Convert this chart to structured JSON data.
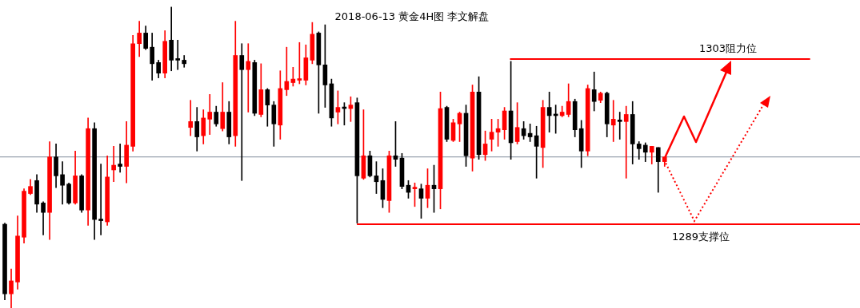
{
  "chart_data": {
    "type": "candlestick",
    "title": "2018-06-13 黄金4H图 李文解盘",
    "categories": [
      null,
      null,
      null,
      null,
      null,
      null,
      null,
      null,
      null,
      null,
      null,
      null,
      null,
      null,
      null,
      null,
      null,
      null,
      null,
      null,
      null,
      null,
      null,
      null,
      null,
      null,
      null,
      null,
      null,
      null,
      null,
      null,
      null,
      null,
      null,
      null,
      null,
      null,
      null,
      null,
      null,
      null,
      null,
      null,
      null,
      null,
      null,
      null,
      null,
      null,
      null,
      null,
      null,
      null,
      null,
      null,
      null,
      null,
      null,
      null,
      null,
      null,
      null,
      null,
      null,
      null,
      null,
      null,
      null,
      null,
      null,
      null,
      null,
      null,
      null,
      null,
      null,
      null,
      null,
      null,
      null,
      null,
      null,
      null,
      null,
      null,
      null,
      null,
      null,
      null,
      null,
      null,
      null,
      null,
      null,
      null,
      null,
      null,
      null,
      null,
      null,
      null,
      null,
      null,
      null,
      null,
      null,
      null,
      null,
      null,
      null,
      null,
      null,
      null,
      null,
      null,
      null,
      null,
      null,
      null,
      null,
      null,
      null,
      null,
      null,
      null,
      null,
      null,
      null,
      null,
      null,
      null,
      null,
      null
    ],
    "ohlc": [
      [
        1289.0,
        1289.1,
        1282.6,
        1283.1
      ],
      [
        1283.1,
        1285.2,
        1281.9,
        1284.2
      ],
      [
        1284.1,
        1289.7,
        1283.5,
        1288.0
      ],
      [
        1287.9,
        1292.0,
        1287.4,
        1291.8
      ],
      [
        1291.6,
        1292.8,
        1291.5,
        1292.2
      ],
      [
        1292.7,
        1293.2,
        1290.0,
        1290.7
      ],
      [
        1290.8,
        1290.9,
        1288.1,
        1290.0
      ],
      [
        1290.0,
        1296.0,
        1287.7,
        1294.7
      ],
      [
        1294.7,
        1295.8,
        1292.1,
        1293.1
      ],
      [
        1293.2,
        1294.3,
        1290.7,
        1292.3
      ],
      [
        1292.4,
        1292.5,
        1290.7,
        1290.8
      ],
      [
        1290.8,
        1295.2,
        1290.7,
        1293.1
      ],
      [
        1293.1,
        1293.2,
        1290.0,
        1290.2
      ],
      [
        1290.2,
        1298.0,
        1288.9,
        1297.1
      ],
      [
        1297.1,
        1297.6,
        1287.7,
        1289.4
      ],
      [
        1289.4,
        1294.1,
        1288.1,
        1289.3
      ],
      [
        1289.2,
        1294.8,
        1288.9,
        1293.0
      ],
      [
        1293.6,
        1295.6,
        1292.6,
        1294.0
      ],
      [
        1294.1,
        1295.8,
        1293.4,
        1293.9
      ],
      [
        1293.9,
        1297.7,
        1292.5,
        1295.7
      ],
      [
        1295.6,
        1305.0,
        1295.2,
        1304.3
      ],
      [
        1304.3,
        1306.2,
        1303.2,
        1305.2
      ],
      [
        1305.2,
        1305.8,
        1303.8,
        1303.9
      ],
      [
        1304.0,
        1305.2,
        1301.2,
        1302.6
      ],
      [
        1302.7,
        1302.9,
        1301.4,
        1301.8
      ],
      [
        1301.8,
        1305.4,
        1301.4,
        1304.5
      ],
      [
        1304.6,
        1307.4,
        1302.0,
        1302.9
      ],
      [
        1303.0,
        1304.6,
        1302.1,
        1302.9
      ],
      [
        1302.9,
        1303.3,
        1302.3,
        1302.6
      ],
      [
        1297.2,
        1299.5,
        1296.5,
        1297.7
      ],
      [
        1297.7,
        1298.9,
        1295.2,
        1296.4
      ],
      [
        1296.5,
        1298.7,
        1295.8,
        1298.0
      ],
      [
        1297.9,
        1300.0,
        1296.6,
        1298.5
      ],
      [
        1298.5,
        1299.0,
        1297.3,
        1297.5
      ],
      [
        1297.1,
        1301.0,
        1296.9,
        1298.5
      ],
      [
        1298.5,
        1299.4,
        1295.8,
        1296.4
      ],
      [
        1296.5,
        1306.2,
        1295.6,
        1303.3
      ],
      [
        1303.3,
        1304.3,
        1292.7,
        1302.1
      ],
      [
        1302.1,
        1304.3,
        1298.5,
        1302.8
      ],
      [
        1302.7,
        1302.9,
        1298.2,
        1298.4
      ],
      [
        1298.3,
        1302.6,
        1298.1,
        1300.4
      ],
      [
        1300.4,
        1300.5,
        1297.3,
        1299.1
      ],
      [
        1299.1,
        1299.4,
        1295.6,
        1297.5
      ],
      [
        1297.4,
        1302.0,
        1296.2,
        1300.5
      ],
      [
        1300.4,
        1304.0,
        1299.9,
        1301.1
      ],
      [
        1301.0,
        1302.3,
        1300.7,
        1301.3
      ],
      [
        1301.2,
        1304.4,
        1300.9,
        1301.3
      ],
      [
        1301.2,
        1304.2,
        1300.8,
        1303.1
      ],
      [
        1302.9,
        1306.1,
        1302.6,
        1305.1
      ],
      [
        1305.2,
        1305.3,
        1298.4,
        1302.5
      ],
      [
        1302.5,
        1305.9,
        1298.9,
        1300.8
      ],
      [
        1300.9,
        1301.3,
        1297.3,
        1298.0
      ],
      [
        1298.5,
        1300.3,
        1297.5,
        1298.9
      ],
      [
        1298.9,
        1299.3,
        1297.4,
        1298.8
      ],
      [
        1298.8,
        1299.8,
        1297.7,
        1299.1
      ],
      [
        1299.3,
        1299.7,
        1289.1,
        1293.1
      ],
      [
        1292.9,
        1298.7,
        1292.8,
        1294.8
      ],
      [
        1294.8,
        1295.2,
        1293.0,
        1293.1
      ],
      [
        1293.1,
        1294.3,
        1291.6,
        1292.6
      ],
      [
        1292.7,
        1293.7,
        1290.4,
        1291.1
      ],
      [
        1291.0,
        1295.2,
        1290.0,
        1294.8
      ],
      [
        1294.8,
        1297.7,
        1293.9,
        1294.5
      ],
      [
        1294.6,
        1295.0,
        1292.0,
        1292.2
      ],
      [
        1292.3,
        1292.7,
        1291.2,
        1291.7
      ],
      [
        1292.0,
        1292.5,
        1290.5,
        1292.1
      ],
      [
        1292.0,
        1292.4,
        1289.5,
        1291.2
      ],
      [
        1291.2,
        1293.7,
        1290.4,
        1292.3
      ],
      [
        1292.3,
        1294.0,
        1290.0,
        1292.0
      ],
      [
        1292.0,
        1300.2,
        1290.3,
        1298.8
      ],
      [
        1298.9,
        1299.0,
        1296.0,
        1296.2
      ],
      [
        1296.1,
        1297.9,
        1296.0,
        1297.6
      ],
      [
        1297.5,
        1298.5,
        1296.0,
        1298.4
      ],
      [
        1298.4,
        1299.1,
        1293.9,
        1294.8
      ],
      [
        1294.6,
        1300.8,
        1293.5,
        1300.2
      ],
      [
        1300.2,
        1301.5,
        1294.5,
        1294.9
      ],
      [
        1294.9,
        1296.9,
        1294.4,
        1295.8
      ],
      [
        1296.2,
        1297.9,
        1295.2,
        1296.8
      ],
      [
        1296.8,
        1297.9,
        1295.6,
        1297.1
      ],
      [
        1297.0,
        1298.9,
        1296.2,
        1298.6
      ],
      [
        1298.6,
        1302.8,
        1294.5,
        1295.9
      ],
      [
        1296.0,
        1299.3,
        1295.8,
        1297.2
      ],
      [
        1297.1,
        1297.7,
        1296.2,
        1296.5
      ],
      [
        1296.7,
        1297.5,
        1296.0,
        1296.4
      ],
      [
        1296.5,
        1297.3,
        1292.9,
        1295.6
      ],
      [
        1295.5,
        1299.5,
        1293.8,
        1298.9
      ],
      [
        1298.9,
        1300.2,
        1296.8,
        1298.2
      ],
      [
        1298.3,
        1299.1,
        1296.7,
        1298.2
      ],
      [
        1298.2,
        1299.0,
        1298.1,
        1298.5
      ],
      [
        1298.3,
        1300.9,
        1298.1,
        1299.4
      ],
      [
        1299.4,
        1299.6,
        1296.4,
        1297.0
      ],
      [
        1297.1,
        1297.8,
        1293.8,
        1295.2
      ],
      [
        1295.2,
        1300.8,
        1294.8,
        1300.5
      ],
      [
        1300.4,
        1301.9,
        1298.6,
        1299.4
      ],
      [
        1299.5,
        1300.2,
        1299.3,
        1300.1
      ],
      [
        1300.1,
        1300.2,
        1296.4,
        1297.5
      ],
      [
        1297.4,
        1299.5,
        1296.0,
        1297.9
      ],
      [
        1297.8,
        1298.5,
        1296.2,
        1297.7
      ],
      [
        1297.7,
        1299.0,
        1292.9,
        1298.3
      ],
      [
        1298.3,
        1299.4,
        1294.1,
        1295.8
      ],
      [
        1295.8,
        1296.0,
        1294.5,
        1295.4
      ],
      [
        1295.7,
        1295.9,
        1294.3,
        1295.1
      ],
      [
        1295.1,
        1295.6,
        1294.1,
        1295.6
      ],
      [
        1295.5,
        1295.5,
        1291.7,
        1294.3
      ],
      [
        1294.3,
        1294.7,
        1293.9,
        1294.7
      ],
      null,
      null,
      null,
      null,
      null,
      null,
      null,
      null,
      null,
      null,
      null,
      null,
      null,
      null,
      null,
      null,
      null,
      null,
      null,
      null,
      null,
      null,
      null,
      null,
      null,
      null,
      null,
      null,
      null,
      null
    ],
    "colors": [
      "#000000",
      "#ff0000",
      "#ff0000",
      "#ff0000",
      "#ff0000",
      "#000000",
      "#000000",
      "#ff0000",
      "#000000",
      "#000000",
      "#000000",
      "#ff0000",
      "#000000",
      "#ff0000",
      "#000000",
      "#000000",
      "#ff0000",
      "#ff0000",
      "#000000",
      "#ff0000",
      "#ff0000",
      "#ff0000",
      "#000000",
      "#000000",
      "#000000",
      "#ff0000",
      "#000000",
      "#000000",
      "#000000",
      "#ff0000",
      "#000000",
      "#ff0000",
      "#ff0000",
      "#000000",
      "#ff0000",
      "#000000",
      "#ff0000",
      "#000000",
      "#ff0000",
      "#000000",
      "#ff0000",
      "#000000",
      "#000000",
      "#ff0000",
      "#ff0000",
      "#ff0000",
      "#ff0000",
      "#ff0000",
      "#ff0000",
      "#000000",
      "#000000",
      "#000000",
      "#ff0000",
      "#000000",
      "#ff0000",
      "#000000",
      "#ff0000",
      "#000000",
      "#000000",
      "#000000",
      "#ff0000",
      "#000000",
      "#000000",
      "#000000",
      "#ff0000",
      "#000000",
      "#ff0000",
      "#000000",
      "#ff0000",
      "#000000",
      "#ff0000",
      "#ff0000",
      "#000000",
      "#ff0000",
      "#000000",
      "#ff0000",
      "#ff0000",
      "#ff0000",
      "#ff0000",
      "#000000",
      "#ff0000",
      "#000000",
      "#000000",
      "#000000",
      "#ff0000",
      "#000000",
      "#000000",
      "#ff0000",
      "#ff0000",
      "#000000",
      "#000000",
      "#ff0000",
      "#000000",
      "#ff0000",
      "#000000",
      "#ff0000",
      "#000000",
      "#ff0000",
      "#000000",
      "#000000",
      "#000000",
      "#ff0000",
      "#000000",
      "#ff0000",
      null,
      null,
      null,
      null,
      null,
      null,
      null,
      null,
      null,
      null,
      null,
      null,
      null,
      null,
      null,
      null,
      null,
      null,
      null,
      null,
      null,
      null,
      null,
      null,
      null,
      null,
      null,
      null,
      null,
      null
    ],
    "ylim": [
      1281.9,
      1308.0
    ],
    "tick_labels": false,
    "ref_lines": [
      {
        "axis": "y",
        "value": 1294.7,
        "color": "#7f8c9a"
      },
      {
        "axis": "y",
        "value": 1303,
        "label": "1303阻力位",
        "color": "#ff0000"
      },
      {
        "axis": "y",
        "value": 1289,
        "label": "1289支撑位",
        "color": "#ff0000"
      }
    ]
  }
}
